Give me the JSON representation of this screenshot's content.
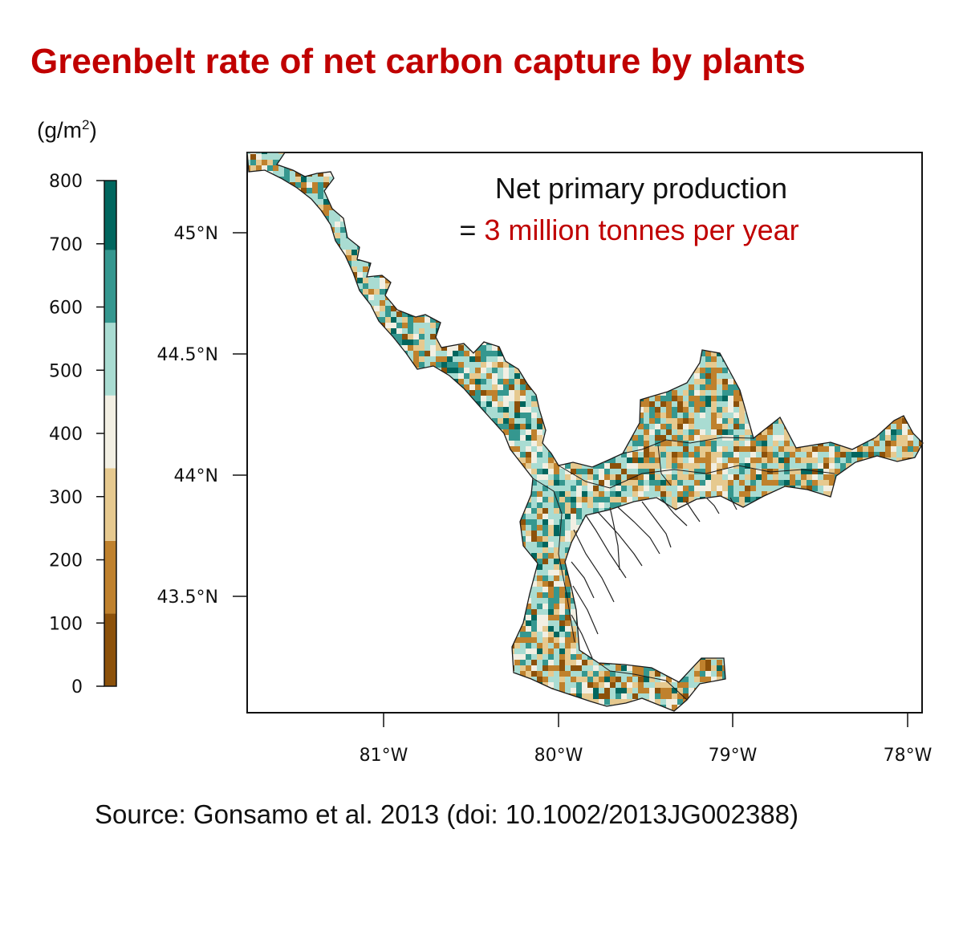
{
  "title": "Greenbelt rate of net carbon capture by plants",
  "colorbar": {
    "unit_base": "(g/m",
    "unit_sup": "2",
    "unit_end": ")",
    "ticks": [
      "0",
      "100",
      "200",
      "300",
      "400",
      "500",
      "600",
      "700",
      "800"
    ],
    "bins": [
      {
        "from": 0,
        "to": 115,
        "color": "#8c510a"
      },
      {
        "from": 115,
        "to": 230,
        "color": "#bf812d"
      },
      {
        "from": 230,
        "to": 345,
        "color": "#e6c98f"
      },
      {
        "from": 345,
        "to": 460,
        "color": "#f2efe3"
      },
      {
        "from": 460,
        "to": 575,
        "color": "#a9dcd2"
      },
      {
        "from": 575,
        "to": 690,
        "color": "#35978f"
      },
      {
        "from": 690,
        "to": 800,
        "color": "#01665e"
      }
    ]
  },
  "map": {
    "lat_ticks": [
      "45°N",
      "44.5°N",
      "44°N",
      "43.5°N"
    ],
    "lon_ticks": [
      "81°W",
      "80°W",
      "79°W",
      "78°W"
    ],
    "annotation_line1": "Net primary production",
    "annotation_eq": "= ",
    "annotation_line2": "3 million tonnes per year"
  },
  "source": "Source: Gonsamo et al. 2013 (doi: 10.1002/2013JG002388)"
}
